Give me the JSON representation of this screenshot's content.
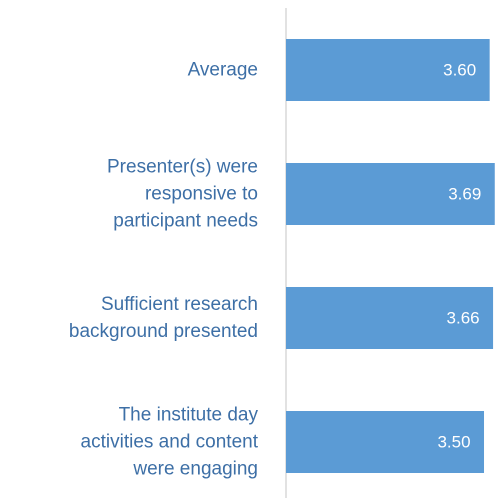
{
  "chart_data": {
    "type": "hbar",
    "categories": [
      "Average",
      "Presenter(s) were\nresponsive to\nparticipant needs",
      "Sufficient research\nbackground presented",
      "The institute day\nactivities and content\nwere engaging"
    ],
    "values": [
      3.6,
      3.69,
      3.66,
      3.5
    ],
    "value_labels": [
      "3.60",
      "3.69",
      "3.66",
      "3.50"
    ],
    "color": "#5b9bd5",
    "xlim": [
      0,
      4
    ]
  }
}
